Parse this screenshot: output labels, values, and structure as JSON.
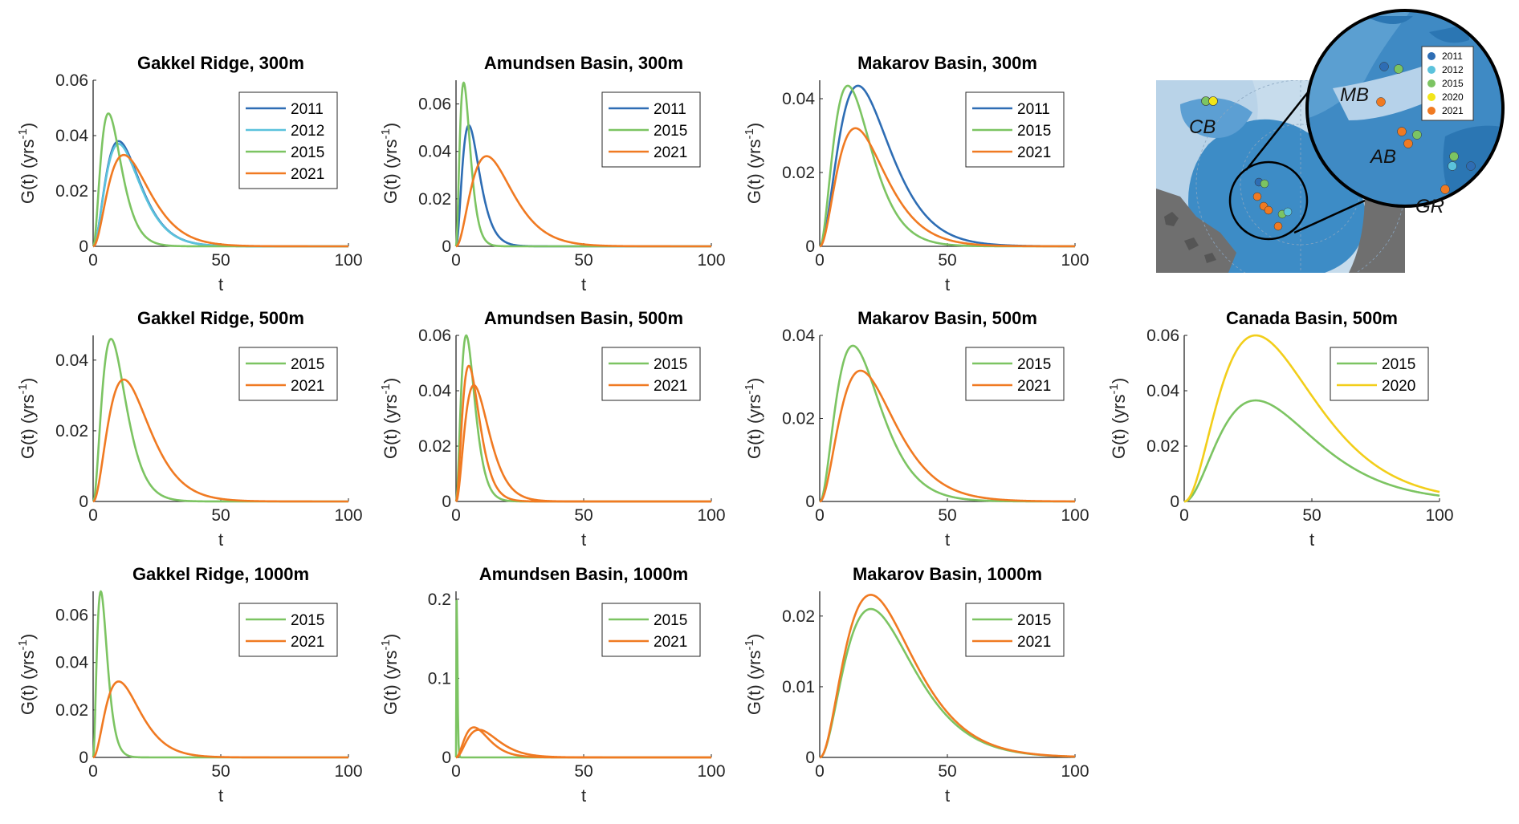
{
  "figure": {
    "colors": {
      "2011": "#2E6DB4",
      "2012": "#5BC2DC",
      "2015": "#7CC462",
      "2020": "#F2CE1A",
      "2021": "#F07A22",
      "axis": "#262626"
    },
    "map": {
      "labels": [
        "CB",
        "MB",
        "AB",
        "GR"
      ],
      "legend": [
        "2011",
        "2012",
        "2015",
        "2020",
        "2021"
      ]
    }
  },
  "chart_data": [
    {
      "type": "line",
      "title": "Gakkel Ridge, 300m",
      "xlabel": "t",
      "ylabel": "G(t) (yrs",
      "ylabel_sup": "-1",
      "ylabel_close": ")",
      "xlim": [
        0,
        100
      ],
      "ylim": [
        0,
        0.06
      ],
      "xticks": [
        0,
        50,
        100
      ],
      "yticks": [
        0,
        0.02,
        0.04,
        0.06
      ],
      "xtick_labels": [
        "0",
        "50",
        "100"
      ],
      "ytick_labels": [
        "0",
        "0.02",
        "0.04",
        "0.06"
      ],
      "series": [
        {
          "name": "2011",
          "peak_t": 10,
          "peak_g": 0.038
        },
        {
          "name": "2012",
          "peak_t": 10,
          "peak_g": 0.037
        },
        {
          "name": "2015",
          "peak_t": 6,
          "peak_g": 0.048
        },
        {
          "name": "2021",
          "peak_t": 12,
          "peak_g": 0.033
        }
      ]
    },
    {
      "type": "line",
      "title": "Amundsen Basin, 300m",
      "xlabel": "t",
      "ylabel": "G(t) (yrs",
      "ylabel_sup": "-1",
      "ylabel_close": ")",
      "xlim": [
        0,
        100
      ],
      "ylim": [
        0,
        0.07
      ],
      "xticks": [
        0,
        50,
        100
      ],
      "yticks": [
        0,
        0.02,
        0.04,
        0.06
      ],
      "xtick_labels": [
        "0",
        "50",
        "100"
      ],
      "ytick_labels": [
        "0",
        "0.02",
        "0.04",
        "0.06"
      ],
      "series": [
        {
          "name": "2011",
          "peak_t": 5,
          "peak_g": 0.051
        },
        {
          "name": "2015",
          "peak_t": 3,
          "peak_g": 0.069
        },
        {
          "name": "2021",
          "peak_t": 12,
          "peak_g": 0.038
        }
      ]
    },
    {
      "type": "line",
      "title": "Makarov Basin, 300m",
      "xlabel": "t",
      "ylabel": "G(t) (yrs",
      "ylabel_sup": "-1",
      "ylabel_close": ")",
      "xlim": [
        0,
        100
      ],
      "ylim": [
        0,
        0.045
      ],
      "xticks": [
        0,
        50,
        100
      ],
      "yticks": [
        0,
        0.02,
        0.04
      ],
      "xtick_labels": [
        "0",
        "50",
        "100"
      ],
      "ytick_labels": [
        "0",
        "0.02",
        "0.04"
      ],
      "series": [
        {
          "name": "2011",
          "peak_t": 15,
          "peak_g": 0.0435
        },
        {
          "name": "2015",
          "peak_t": 11,
          "peak_g": 0.0435
        },
        {
          "name": "2021",
          "peak_t": 14,
          "peak_g": 0.032
        }
      ]
    },
    {
      "type": "line",
      "title": "Gakkel Ridge, 500m",
      "xlabel": "t",
      "ylabel": "G(t) (yrs",
      "ylabel_sup": "-1",
      "ylabel_close": ")",
      "xlim": [
        0,
        100
      ],
      "ylim": [
        0,
        0.047
      ],
      "xticks": [
        0,
        50,
        100
      ],
      "yticks": [
        0,
        0.02,
        0.04
      ],
      "xtick_labels": [
        "0",
        "50",
        "100"
      ],
      "ytick_labels": [
        "0",
        "0.02",
        "0.04"
      ],
      "series": [
        {
          "name": "2015",
          "peak_t": 7,
          "peak_g": 0.046
        },
        {
          "name": "2021",
          "peak_t": 12,
          "peak_g": 0.0345
        }
      ]
    },
    {
      "type": "line",
      "title": "Amundsen Basin, 500m",
      "xlabel": "t",
      "ylabel": "G(t) (yrs",
      "ylabel_sup": "-1",
      "ylabel_close": ")",
      "xlim": [
        0,
        100
      ],
      "ylim": [
        0,
        0.06
      ],
      "xticks": [
        0,
        50,
        100
      ],
      "yticks": [
        0,
        0.02,
        0.04,
        0.06
      ],
      "xtick_labels": [
        "0",
        "50",
        "100"
      ],
      "ytick_labels": [
        "0",
        "0.02",
        "0.04",
        "0.06"
      ],
      "series": [
        {
          "name": "2015",
          "peak_t": 4,
          "peak_g": 0.06
        },
        {
          "name": "2021",
          "peak_t": 5,
          "peak_g": 0.049
        },
        {
          "name": "2021",
          "peak_t": 7,
          "peak_g": 0.042
        }
      ]
    },
    {
      "type": "line",
      "title": "Makarov Basin, 500m",
      "xlabel": "t",
      "ylabel": "G(t) (yrs",
      "ylabel_sup": "-1",
      "ylabel_close": ")",
      "xlim": [
        0,
        100
      ],
      "ylim": [
        0,
        0.04
      ],
      "xticks": [
        0,
        50,
        100
      ],
      "yticks": [
        0,
        0.02,
        0.04
      ],
      "xtick_labels": [
        "0",
        "50",
        "100"
      ],
      "ytick_labels": [
        "0",
        "0.02",
        "0.04"
      ],
      "series": [
        {
          "name": "2015",
          "peak_t": 13,
          "peak_g": 0.0375
        },
        {
          "name": "2021",
          "peak_t": 16,
          "peak_g": 0.0315
        }
      ]
    },
    {
      "type": "line",
      "title": "Canada Basin, 500m",
      "xlabel": "t",
      "ylabel": "G(t) (yrs",
      "ylabel_sup": "-1",
      "ylabel_close": ")",
      "xlim": [
        0,
        100
      ],
      "ylim": [
        0,
        0.06
      ],
      "xticks": [
        0,
        50,
        100
      ],
      "yticks": [
        0,
        0.02,
        0.04,
        0.06
      ],
      "xtick_labels": [
        "0",
        "50",
        "100"
      ],
      "ytick_labels": [
        "0",
        "0.02",
        "0.04",
        "0.06"
      ],
      "series": [
        {
          "name": "2015",
          "peak_t": 28,
          "peak_g": 0.0365
        },
        {
          "name": "2020",
          "peak_t": 28,
          "peak_g": 0.06
        }
      ]
    },
    {
      "type": "line",
      "title": "Gakkel Ridge, 1000m",
      "xlabel": "t",
      "ylabel": "G(t) (yrs",
      "ylabel_sup": "-1",
      "ylabel_close": ")",
      "xlim": [
        0,
        100
      ],
      "ylim": [
        0,
        0.07
      ],
      "xticks": [
        0,
        50,
        100
      ],
      "yticks": [
        0,
        0.02,
        0.04,
        0.06
      ],
      "xtick_labels": [
        "0",
        "50",
        "100"
      ],
      "ytick_labels": [
        "0",
        "0.02",
        "0.04",
        "0.06"
      ],
      "series": [
        {
          "name": "2015",
          "peak_t": 3,
          "peak_g": 0.07
        },
        {
          "name": "2021",
          "peak_t": 10,
          "peak_g": 0.032
        }
      ]
    },
    {
      "type": "line",
      "title": "Amundsen Basin, 1000m",
      "xlabel": "t",
      "ylabel": "G(t) (yrs",
      "ylabel_sup": "-1",
      "ylabel_close": ")",
      "xlim": [
        0,
        100
      ],
      "ylim": [
        0,
        0.21
      ],
      "xticks": [
        0,
        50,
        100
      ],
      "yticks": [
        0,
        0.1,
        0.2
      ],
      "xtick_labels": [
        "0",
        "50",
        "100"
      ],
      "ytick_labels": [
        "0",
        "0.1",
        "0.2"
      ],
      "series": [
        {
          "name": "2015",
          "peak_t": 0.3,
          "peak_g": 0.205
        },
        {
          "name": "2021",
          "peak_t": 7,
          "peak_g": 0.038
        },
        {
          "name": "2021",
          "peak_t": 9,
          "peak_g": 0.035
        }
      ]
    },
    {
      "type": "line",
      "title": "Makarov Basin, 1000m",
      "xlabel": "t",
      "ylabel": "G(t) (yrs",
      "ylabel_sup": "-1",
      "ylabel_close": ")",
      "xlim": [
        0,
        100
      ],
      "ylim": [
        0,
        0.0235
      ],
      "xticks": [
        0,
        50,
        100
      ],
      "yticks": [
        0,
        0.01,
        0.02
      ],
      "xtick_labels": [
        "0",
        "50",
        "100"
      ],
      "ytick_labels": [
        "0",
        "0.01",
        "0.02"
      ],
      "series": [
        {
          "name": "2015",
          "peak_t": 20,
          "peak_g": 0.021
        },
        {
          "name": "2021",
          "peak_t": 20,
          "peak_g": 0.023
        }
      ]
    }
  ]
}
